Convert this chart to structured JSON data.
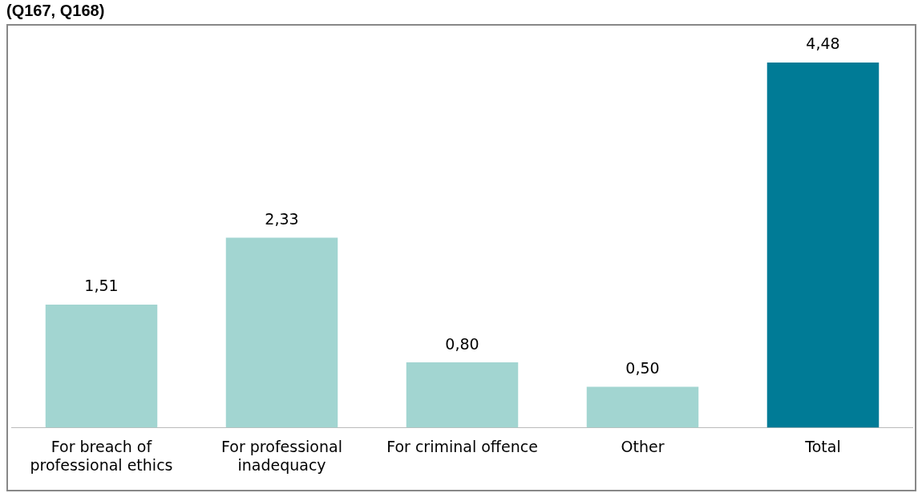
{
  "chart_data": {
    "type": "bar",
    "title": "(Q167, Q168)",
    "categories": [
      "For breach of professional ethics",
      "For professional inadequacy",
      "For criminal offence",
      "Other",
      "Total"
    ],
    "values": [
      1.51,
      2.33,
      0.8,
      0.5,
      4.48
    ],
    "colors": [
      "#a2d5d1",
      "#a2d5d1",
      "#a2d5d1",
      "#a2d5d1",
      "#007b96"
    ],
    "value_labels": [
      "1,51",
      "2,33",
      "0,80",
      "0,50",
      "4,48"
    ],
    "grid": false,
    "legend": false
  }
}
